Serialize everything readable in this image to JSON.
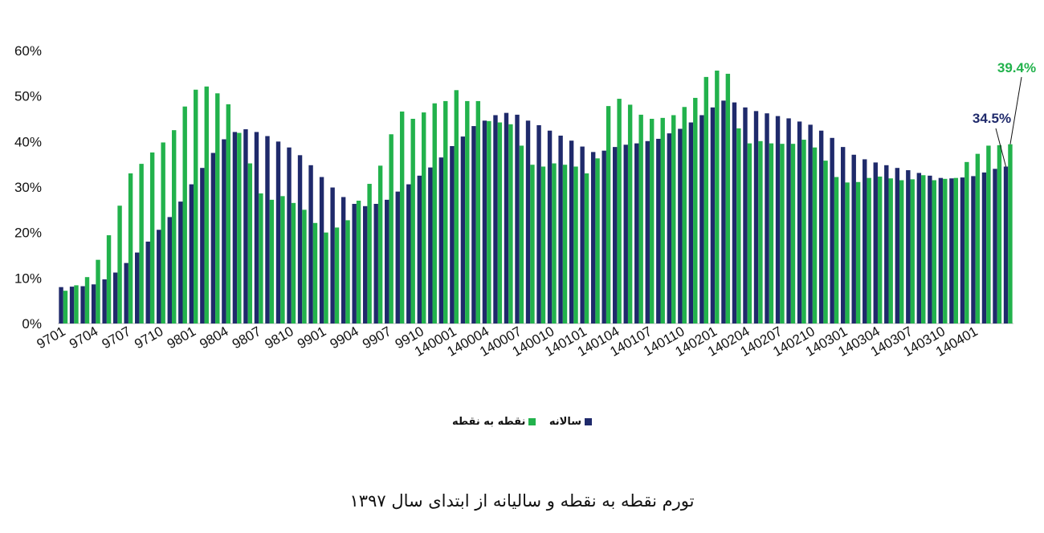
{
  "caption": "تورم نقطه به نقطه و سالیانه از ابتدای سال ۱۳۹۷",
  "legend": {
    "series1": "سالانه",
    "series2": "نقطه به نقطه"
  },
  "colors": {
    "series1": "#1f2a6b",
    "series2": "#22b24c"
  },
  "chart_data": {
    "type": "bar",
    "y_ticks": [
      "0%",
      "10%",
      "20%",
      "30%",
      "40%",
      "50%",
      "60%"
    ],
    "ylim": [
      0,
      60
    ],
    "x_tick_labels": [
      "9701",
      "9704",
      "9707",
      "9710",
      "9801",
      "9804",
      "9807",
      "9810",
      "9901",
      "9904",
      "9907",
      "9910",
      "140001",
      "140004",
      "140007",
      "140010",
      "140101",
      "140104",
      "140107",
      "140110",
      "140201",
      "140204",
      "140207",
      "140210",
      "140301",
      "140304",
      "140307",
      "140310",
      "140401"
    ],
    "series": [
      {
        "name": "سالانه",
        "values": [
          8,
          8.1,
          8.2,
          8.6,
          9.7,
          11.2,
          13.3,
          15.6,
          18,
          20.6,
          23.4,
          26.8,
          30.6,
          34.2,
          37.5,
          40.5,
          42.1,
          42.7,
          42.1,
          41.2,
          40,
          38.7,
          37,
          34.8,
          32.2,
          29.9,
          27.8,
          26.3,
          25.8,
          26.3,
          27.2,
          29,
          30.6,
          32.5,
          34.3,
          36.5,
          39,
          41.1,
          43.4,
          44.6,
          45.8,
          46.3,
          45.9,
          44.6,
          43.6,
          42.4,
          41.3,
          40.2,
          38.9,
          37.7,
          38,
          38.8,
          39.3,
          39.6,
          40.1,
          40.6,
          41.8,
          42.8,
          44.2,
          45.8,
          47.5,
          49,
          48.6,
          47.5,
          46.7,
          46.2,
          45.6,
          45.1,
          44.4,
          43.7,
          42.4,
          40.8,
          38.8,
          37.1,
          36.1,
          35.4,
          34.8,
          34.2,
          33.7,
          33.1,
          32.5,
          32,
          31.9,
          32.1,
          32.4,
          33.2,
          34,
          34.5
        ]
      },
      {
        "name": "نقطه به نقطه",
        "values": [
          7.2,
          8.4,
          10.2,
          14,
          19.4,
          25.9,
          33,
          35.1,
          37.6,
          39.8,
          42.5,
          47.7,
          51.4,
          52.1,
          50.6,
          48.2,
          41.9,
          35.2,
          28.6,
          27.2,
          28,
          26.5,
          25,
          22.1,
          20,
          21.1,
          22.7,
          27,
          30.7,
          34.7,
          41.6,
          46.6,
          45,
          46.4,
          48.4,
          48.9,
          51.3,
          48.9,
          48.9,
          44.5,
          44.2,
          43.8,
          39.1,
          34.9,
          34.5,
          35.2,
          34.9,
          34.5,
          33,
          36.3,
          47.8,
          49.4,
          48.1,
          45.9,
          45,
          45.2,
          45.8,
          47.6,
          49.6,
          54.2,
          55.6,
          54.9,
          42.9,
          39.6,
          40.1,
          39.6,
          39.5,
          39.5,
          40.4,
          38.7,
          35.8,
          32.2,
          31,
          31.1,
          32,
          32.3,
          31.9,
          31.5,
          31.7,
          32.6,
          31.5,
          31.8,
          32,
          35.5,
          37.3,
          39.1,
          39.2,
          39.4
        ]
      }
    ],
    "annotations": [
      {
        "text": "34.5%",
        "series": 0,
        "index": 87
      },
      {
        "text": "39.4%",
        "series": 1,
        "index": 87
      }
    ]
  }
}
